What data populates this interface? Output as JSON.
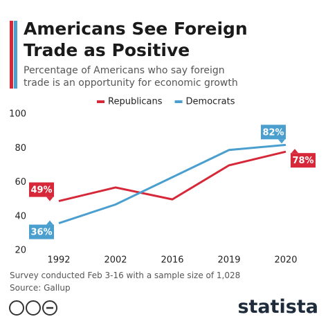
{
  "chart_data": {
    "type": "line",
    "title": "Americans See Foreign Trade as Positive",
    "subtitle": "Percentage of Americans who say foreign trade is an opportunity for economic growth",
    "categories": [
      "1992",
      "2002",
      "2016",
      "2019",
      "2020"
    ],
    "series": [
      {
        "name": "Republicans",
        "color": "#d62839",
        "values": [
          49,
          57,
          50,
          70,
          78
        ],
        "value_labels": [
          "49%",
          null,
          null,
          null,
          "78%"
        ]
      },
      {
        "name": "Democrats",
        "color": "#4a9fcf",
        "values": [
          36,
          47,
          63,
          79,
          82
        ],
        "value_labels": [
          "36%",
          null,
          null,
          null,
          "82%"
        ]
      }
    ],
    "ylim": [
      20,
      100
    ],
    "yticks": [
      20,
      40,
      60,
      80,
      100
    ],
    "grid": false,
    "notes": [
      "Survey conducted Feb 3-16 with a sample size of 1,028",
      "Source: Gallup"
    ],
    "brand": "statista"
  }
}
